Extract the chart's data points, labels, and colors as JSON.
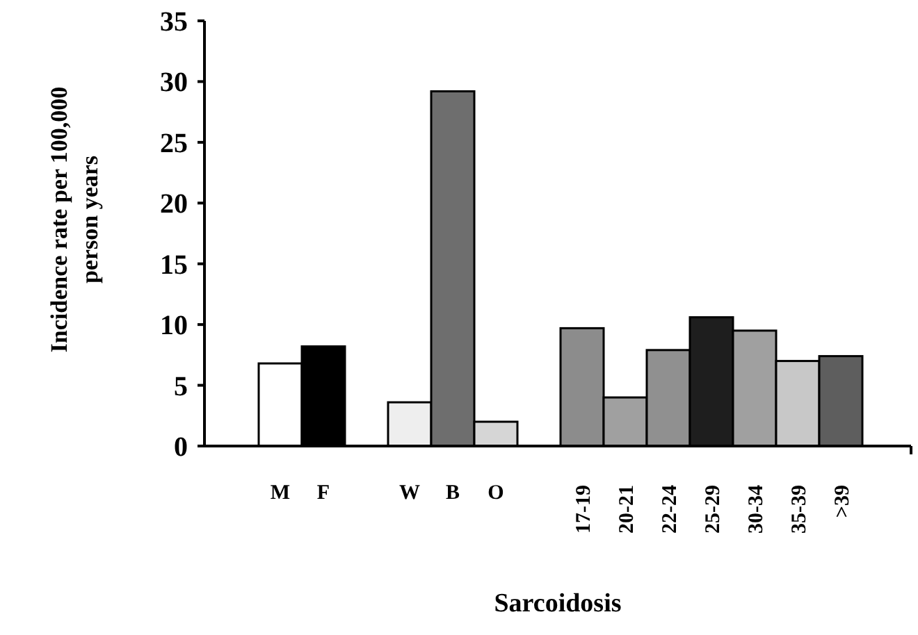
{
  "chart_data": {
    "type": "bar",
    "xlabel": "Sarcoidosis",
    "ylabel": "Incidence rate per 100,000\nperson years",
    "categories": [
      null,
      "M",
      "F",
      null,
      "W",
      "B",
      "O",
      null,
      "17-19",
      "20-21",
      "22-24",
      "25-29",
      "30-34",
      "35-39",
      ">39",
      null
    ],
    "values": [
      null,
      6.8,
      8.2,
      null,
      3.6,
      29.2,
      2.0,
      null,
      9.7,
      4.0,
      7.9,
      10.6,
      9.5,
      7.0,
      7.4,
      null
    ],
    "colors": [
      null,
      "#ffffff",
      "#000000",
      null,
      "#eeeeee",
      "#6e6e6e",
      "#d6d6d6",
      null,
      "#8c8c8c",
      "#a0a0a0",
      "#909090",
      "#1e1e1e",
      "#a0a0a0",
      "#c8c8c8",
      "#5e5e5e",
      null
    ],
    "ylim": [
      0,
      35
    ],
    "yticks": [
      0,
      5,
      10,
      15,
      20,
      25,
      30,
      35
    ],
    "grid": false
  }
}
